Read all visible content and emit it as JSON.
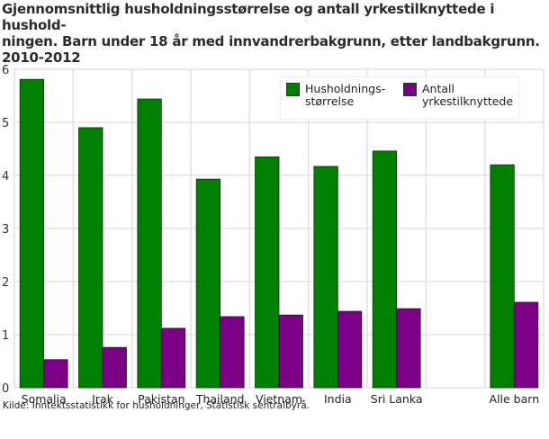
{
  "title": "Gjennomsnittlig husholdningsstørrelse og antall yrkestilknyttede i hushold-\nningen. Barn under 18 år med innvandrerbakgrunn, etter landbakgrunn.\n2010-2012",
  "title_lines": [
    "Gjennomsnittlig husholdningsstørrelse og antall yrkestilknyttede i hushold-",
    "ningen. Barn under 18 år med innvandrerbakgrunn, etter landbakgrunn.",
    "2010-2012"
  ],
  "source": "Kilde: Inntektsstatistikk for husholdninger, Statistisk sentralbyrå.",
  "legend": [
    {
      "label": "Husholdnings-\nstørrelse",
      "color": "#008000"
    },
    {
      "label": "Antall\nyrkestilknyttede",
      "color": "#7b0085"
    }
  ],
  "chart_data": {
    "type": "bar",
    "title": "Gjennomsnittlig husholdningsstørrelse og antall yrkestilknyttede i husholdningen. Barn under 18 år med innvandrerbakgrunn, etter landbakgrunn. 2010-2012",
    "categories": [
      "Somalia",
      "Irak",
      "Pakistan",
      "Thailand",
      "Vietnam",
      "India",
      "Sri Lanka",
      "",
      "Alle barn"
    ],
    "series": [
      {
        "name": "Husholdningsstørrelse",
        "color": "#008000",
        "values": [
          5.81,
          4.9,
          5.44,
          3.93,
          4.35,
          4.17,
          4.46,
          null,
          4.2
        ]
      },
      {
        "name": "Antall yrkestilknyttede",
        "color": "#7b0085",
        "values": [
          0.53,
          0.76,
          1.12,
          1.34,
          1.37,
          1.44,
          1.49,
          null,
          1.61
        ]
      }
    ],
    "xlabel": "",
    "ylabel": "",
    "ylim": [
      0,
      6
    ],
    "yticks": [
      0,
      1,
      2,
      3,
      4,
      5,
      6
    ],
    "grid": true,
    "legend_position": "top-right inside"
  }
}
